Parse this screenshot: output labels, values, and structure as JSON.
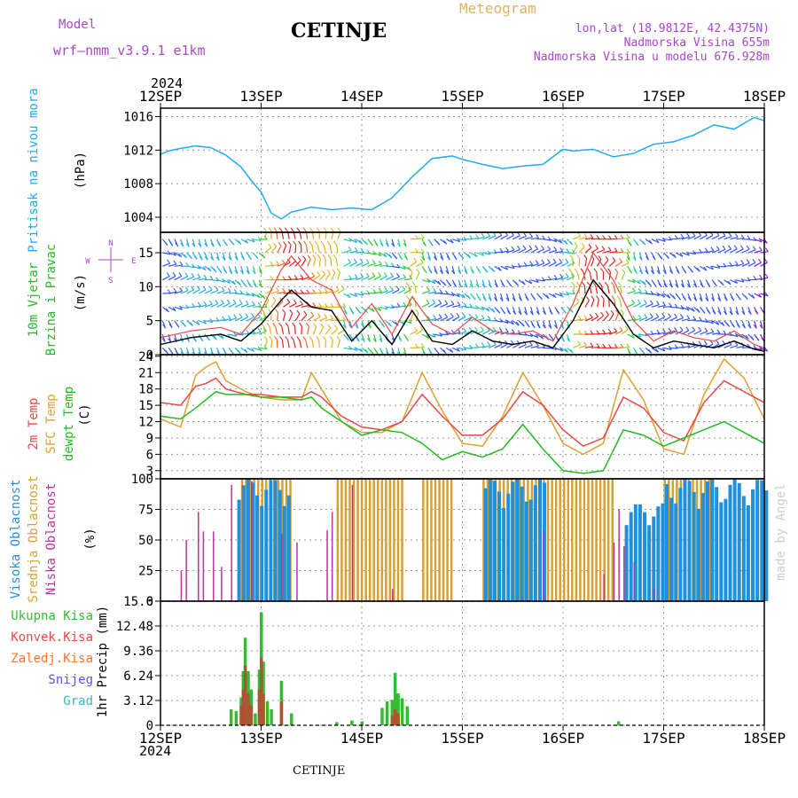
{
  "header": {
    "model_label": "Model",
    "model_name": "wrf—nmm_v3.9.1  e1km",
    "station": "CETINJE",
    "product": "Meteogram",
    "lonlat": "lon,lat (18.9812E, 42.4375N)",
    "elevation": "Nadmorska Visina 655m",
    "model_elevation": "Nadmorska Visina u modelu 676.928m",
    "footer": "CETINJE",
    "credit": "made by Angel",
    "year": "2024"
  },
  "colors": {
    "pressure": "#22aaee",
    "temp2m": "#e84848",
    "sfc": "#dda030",
    "dew": "#22bb22",
    "high_cloud": "#2090dd",
    "mid_cloud": "#d8a030",
    "low_cloud": "#c030a0",
    "precip_total": "#33bb33",
    "precip_conv": "#e84848",
    "frozen": "#ee7733",
    "snow": "#5555dd",
    "hail": "#33bbbb",
    "wind_compass": "#aa44cc"
  },
  "chart_data": [
    {
      "type": "line",
      "panel": "pressure",
      "title": "",
      "ylabel_left": "Pritisak na nivou mora",
      "ylabel_unit": "(hPa)",
      "x_ticks": [
        "12SEP",
        "13SEP",
        "14SEP",
        "15SEP",
        "16SEP",
        "17SEP",
        "18SEP"
      ],
      "ylim": [
        1002.2,
        1017.0
      ],
      "y_ticks": [
        1004,
        1008,
        1012,
        1016
      ],
      "series": [
        {
          "x": [
            0,
            0.08,
            0.2,
            0.35,
            0.5,
            0.65,
            0.8,
            0.9,
            1.0,
            1.1,
            1.2,
            1.3,
            1.5,
            1.7,
            1.9,
            2.1,
            2.3,
            2.5,
            2.7,
            2.9,
            3.0,
            3.2,
            3.4,
            3.6,
            3.8,
            4.0,
            4.1,
            4.3,
            4.5,
            4.7,
            4.9,
            5.1,
            5.3,
            5.5,
            5.7,
            5.9,
            6.0
          ],
          "y": [
            1011.5,
            1011.9,
            1012.2,
            1012.5,
            1012.3,
            1011.4,
            1010.0,
            1008.4,
            1007.0,
            1004.5,
            1003.8,
            1004.6,
            1005.2,
            1004.9,
            1005.1,
            1004.9,
            1006.3,
            1008.8,
            1011.0,
            1011.3,
            1010.9,
            1010.3,
            1009.8,
            1010.1,
            1010.3,
            1012.1,
            1011.9,
            1012.1,
            1011.2,
            1011.6,
            1012.7,
            1013.0,
            1013.8,
            1015.0,
            1014.5,
            1015.9,
            1015.5
          ]
        }
      ]
    },
    {
      "type": "line",
      "panel": "wind",
      "ylabel_left": [
        "10m Vjetar",
        "Brzina i Pravac"
      ],
      "ylabel_unit": "(m/s)",
      "compass": [
        "N",
        "E",
        "W",
        "S"
      ],
      "ylim": [
        0,
        18
      ],
      "y_ticks": [
        0,
        5,
        10,
        15
      ],
      "series": [
        {
          "name": "speed",
          "x": [
            0,
            0.3,
            0.6,
            0.8,
            1.0,
            1.2,
            1.3,
            1.5,
            1.7,
            1.9,
            2.1,
            2.3,
            2.5,
            2.7,
            2.9,
            3.1,
            3.3,
            3.5,
            3.7,
            3.9,
            4.1,
            4.3,
            4.5,
            4.7,
            4.9,
            5.1,
            5.3,
            5.5,
            5.7,
            5.9,
            6.0
          ],
          "y": [
            1.5,
            2.5,
            3.0,
            2.0,
            4.5,
            8.0,
            9.5,
            7.0,
            6.5,
            2.0,
            5.0,
            1.5,
            6.5,
            2.0,
            1.5,
            3.5,
            2.0,
            1.5,
            2.0,
            1.0,
            5.0,
            11.0,
            7.5,
            3.0,
            1.0,
            2.0,
            1.5,
            1.0,
            2.0,
            0.8,
            0.5
          ]
        },
        {
          "name": "gust",
          "x": [
            0,
            0.3,
            0.6,
            0.8,
            1.0,
            1.2,
            1.3,
            1.5,
            1.7,
            1.9,
            2.1,
            2.3,
            2.5,
            2.7,
            2.9,
            3.1,
            3.3,
            3.5,
            3.7,
            3.9,
            4.1,
            4.3,
            4.5,
            4.7,
            4.9,
            5.1,
            5.3,
            5.5,
            5.7,
            5.9,
            6.0
          ],
          "y": [
            2.5,
            3.5,
            4.0,
            3.0,
            6.5,
            12.5,
            14.5,
            11.0,
            9.5,
            4.0,
            7.5,
            3.0,
            8.5,
            4.5,
            3.0,
            5.5,
            3.5,
            3.0,
            3.5,
            2.0,
            7.5,
            15.0,
            11.0,
            5.0,
            2.0,
            3.5,
            2.5,
            2.0,
            3.5,
            1.5,
            1.0
          ]
        }
      ]
    },
    {
      "type": "line",
      "panel": "temperature",
      "ylabel_left": [
        "2m Temp",
        "SFC Temp",
        "dewpt Temp"
      ],
      "ylabel_unit": "(C)",
      "ylim": [
        1.5,
        24.3
      ],
      "y_ticks": [
        3,
        6,
        9,
        12,
        15,
        18,
        21,
        24
      ],
      "series": [
        {
          "name": "2m Temp",
          "x": [
            0,
            0.2,
            0.35,
            0.45,
            0.55,
            0.65,
            0.85,
            1.0,
            1.2,
            1.4,
            1.5,
            1.6,
            1.8,
            2.0,
            2.2,
            2.4,
            2.6,
            2.8,
            3.0,
            3.2,
            3.4,
            3.6,
            3.8,
            4.0,
            4.2,
            4.4,
            4.6,
            4.8,
            5.0,
            5.2,
            5.4,
            5.6,
            5.8,
            6.0
          ],
          "y": [
            15.5,
            15.0,
            18.5,
            19.0,
            20.0,
            18.0,
            17.0,
            17.0,
            16.5,
            16.5,
            17.5,
            16.5,
            13.0,
            11.0,
            10.5,
            12.0,
            17.0,
            13.0,
            9.5,
            9.5,
            12.5,
            17.5,
            15.0,
            10.5,
            7.5,
            9.0,
            16.5,
            14.5,
            10.0,
            8.5,
            15.5,
            19.5,
            17.5,
            15.5
          ]
        },
        {
          "name": "SFC Temp",
          "x": [
            0,
            0.2,
            0.35,
            0.45,
            0.55,
            0.65,
            0.85,
            1.0,
            1.2,
            1.4,
            1.5,
            1.6,
            1.8,
            2.0,
            2.2,
            2.4,
            2.6,
            2.8,
            3.0,
            3.2,
            3.4,
            3.6,
            3.8,
            4.0,
            4.2,
            4.4,
            4.6,
            4.8,
            5.0,
            5.2,
            5.4,
            5.6,
            5.8,
            6.0
          ],
          "y": [
            12.5,
            11.0,
            20.5,
            22.0,
            23.0,
            19.5,
            17.5,
            16.5,
            16.0,
            16.0,
            21.0,
            18.0,
            12.0,
            10.0,
            10.0,
            12.0,
            21.0,
            14.0,
            8.0,
            7.5,
            13.0,
            21.0,
            15.0,
            8.0,
            6.0,
            8.0,
            21.5,
            16.0,
            7.0,
            6.0,
            17.0,
            23.5,
            20.0,
            12.5
          ]
        },
        {
          "name": "dewpt Temp",
          "x": [
            0,
            0.2,
            0.35,
            0.45,
            0.55,
            0.65,
            0.85,
            1.0,
            1.2,
            1.4,
            1.5,
            1.6,
            1.8,
            2.0,
            2.2,
            2.4,
            2.6,
            2.8,
            3.0,
            3.2,
            3.4,
            3.6,
            3.8,
            4.0,
            4.2,
            4.4,
            4.6,
            4.8,
            5.0,
            5.2,
            5.4,
            5.6,
            5.8,
            6.0
          ],
          "y": [
            13.0,
            12.5,
            14.5,
            16.0,
            17.5,
            17.0,
            17.0,
            16.5,
            16.5,
            16.0,
            16.5,
            14.5,
            12.0,
            9.5,
            10.5,
            10.0,
            8.0,
            5.0,
            6.5,
            5.5,
            7.0,
            11.5,
            7.0,
            3.0,
            2.5,
            3.0,
            10.5,
            9.5,
            7.5,
            9.0,
            10.5,
            12.0,
            10.0,
            8.0
          ]
        }
      ]
    },
    {
      "type": "bar",
      "panel": "clouds",
      "ylabel_left": [
        "Visoka Oblacnost",
        "Srednja Oblacnost",
        "Niska Oblacnost"
      ],
      "ylabel_unit": "(%)",
      "ylim": [
        0,
        100
      ],
      "y_ticks": [
        0,
        25,
        50,
        75,
        100
      ],
      "series": [
        {
          "name": "Visoka Oblacnost",
          "segments": [
            [
              0.75,
              1.25,
              100
            ],
            [
              3.2,
              3.8,
              100
            ],
            [
              4.6,
              5.0,
              80
            ],
            [
              5.0,
              6.0,
              100
            ]
          ]
        },
        {
          "name": "Srednja Oblacnost",
          "segments": [
            [
              0.8,
              1.3,
              100
            ],
            [
              1.75,
              2.4,
              100
            ],
            [
              2.6,
              2.9,
              100
            ],
            [
              3.2,
              4.5,
              100
            ],
            [
              5.0,
              5.5,
              100
            ]
          ]
        },
        {
          "name": "Niska Oblacnost",
          "bars": [
            [
              0.2,
              25
            ],
            [
              0.25,
              50
            ],
            [
              0.37,
              73
            ],
            [
              0.42,
              57
            ],
            [
              0.52,
              57
            ],
            [
              0.6,
              28
            ],
            [
              0.7,
              95
            ],
            [
              0.9,
              98
            ],
            [
              1.2,
              55
            ],
            [
              1.35,
              48
            ],
            [
              1.65,
              58
            ],
            [
              1.7,
              73
            ],
            [
              1.9,
              95
            ],
            [
              2.3,
              10
            ],
            [
              3.8,
              58
            ],
            [
              4.4,
              22
            ],
            [
              4.5,
              48
            ],
            [
              4.55,
              75
            ],
            [
              4.6,
              45
            ],
            [
              4.7,
              32
            ],
            [
              4.9,
              10
            ]
          ]
        }
      ]
    },
    {
      "type": "bar",
      "panel": "precipitation",
      "ylabel_left": [
        "Ukupna Kisa",
        "Konvek.Kisa",
        "Zaledj.Kisa",
        "Snijeg",
        "Grad"
      ],
      "ylabel_unit": "1hr Precip (mm)",
      "ylim": [
        0,
        15.6
      ],
      "y_ticks": [
        0,
        3.12,
        6.24,
        9.36,
        12.48,
        15.6
      ],
      "series": [
        {
          "name": "Ukupna Kisa",
          "x": [
            0.7,
            0.75,
            0.8,
            0.82,
            0.84,
            0.87,
            0.9,
            0.94,
            0.98,
            1.0,
            1.02,
            1.06,
            1.1,
            1.2,
            1.3,
            1.75,
            1.9,
            2.0,
            2.2,
            2.25,
            2.3,
            2.33,
            2.36,
            2.4,
            2.45,
            4.55
          ],
          "y": [
            2.0,
            1.8,
            3.5,
            6.8,
            11.0,
            6.8,
            4.5,
            1.5,
            7.0,
            14.2,
            8.0,
            3.0,
            2.0,
            5.6,
            1.5,
            0.4,
            0.6,
            0.5,
            2.2,
            3.0,
            3.2,
            6.6,
            4.0,
            3.4,
            2.4,
            0.5
          ]
        },
        {
          "name": "Konvek.Kisa",
          "x": [
            0.8,
            0.82,
            0.84,
            0.87,
            0.9,
            0.98,
            1.0,
            1.02,
            1.2,
            2.3,
            2.33,
            2.36
          ],
          "y": [
            2.5,
            4.5,
            7.5,
            4.0,
            2.5,
            4.5,
            8.5,
            4.0,
            3.0,
            1.2,
            2.0,
            1.5
          ]
        }
      ]
    }
  ]
}
